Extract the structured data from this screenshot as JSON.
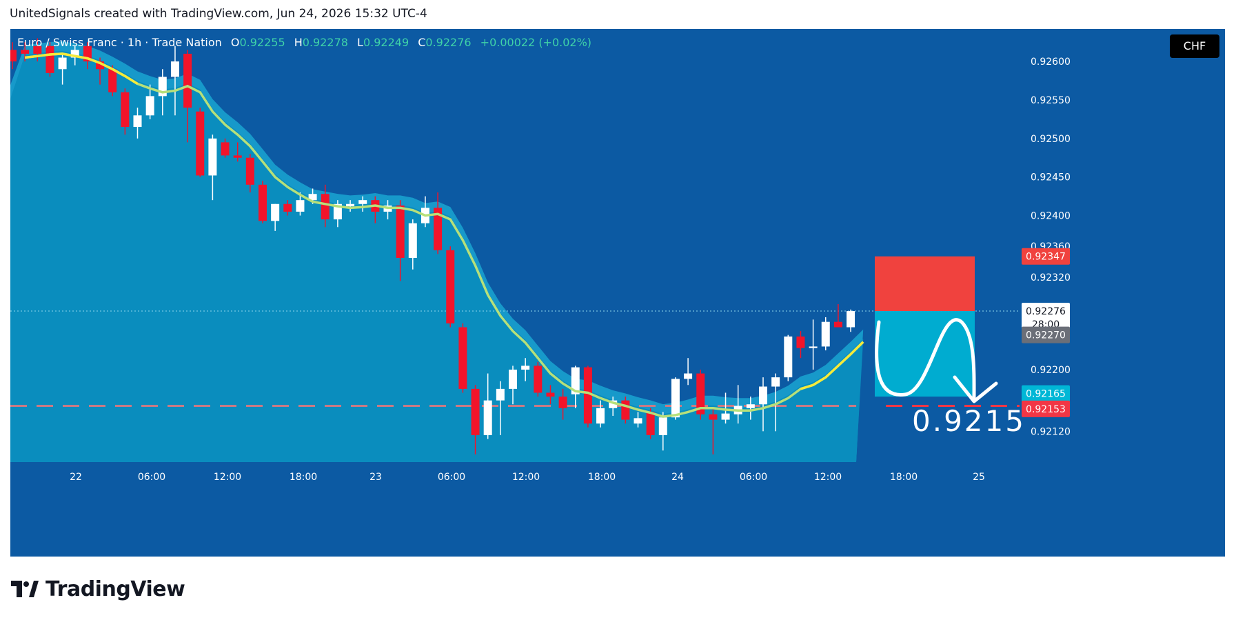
{
  "header": {
    "caption": "UnitedSignals created with TradingView.com, Jun 24, 2026 15:32 UTC-4"
  },
  "legend": {
    "symbol": "Euro / Swiss Franc · 1h · Trade Nation",
    "o_label": "O",
    "o_value": "0.92255",
    "h_label": "H",
    "h_value": "0.92278",
    "l_label": "L",
    "l_value": "0.92249",
    "c_label": "C",
    "c_value": "0.92276",
    "change": "+0.00022 (+0.02%)"
  },
  "currency_button": "CHF",
  "brand": {
    "name": "TradingView"
  },
  "colors": {
    "background": "#0c5aa3",
    "area_fill": "#0a8dbe",
    "area_band": "#1aa4d1",
    "bull": "#ffffff",
    "bear": "#f2142a",
    "ma_line": "#b6e07a",
    "ma_line_recent": "#f5ea3a",
    "stop_zone": "#f0423e",
    "target_zone": "#00acd0",
    "target_line": "#f23645",
    "axis_text": "#ffffff"
  },
  "chart_data": {
    "type": "candlestick",
    "symbol": "Euro / Swiss Franc",
    "timeframe": "1h",
    "ylim": [
      0.9208,
      0.92635
    ],
    "y_ticks": [
      "0.92600",
      "0.92550",
      "0.92500",
      "0.92450",
      "0.92400",
      "0.92360",
      "0.92320",
      "0.92200",
      "0.92120"
    ],
    "x_ticks": [
      "22",
      "06:00",
      "12:00",
      "18:00",
      "23",
      "06:00",
      "12:00",
      "18:00",
      "24",
      "06:00",
      "12:00",
      "18:00",
      "25"
    ],
    "candles": [
      {
        "o": 0.92615,
        "h": 0.92625,
        "l": 0.9259,
        "c": 0.926
      },
      {
        "o": 0.92615,
        "h": 0.92625,
        "l": 0.926,
        "c": 0.9261
      },
      {
        "o": 0.9262,
        "h": 0.9263,
        "l": 0.926,
        "c": 0.9261
      },
      {
        "o": 0.9262,
        "h": 0.92625,
        "l": 0.9258,
        "c": 0.92585
      },
      {
        "o": 0.9259,
        "h": 0.9261,
        "l": 0.9257,
        "c": 0.92605
      },
      {
        "o": 0.92605,
        "h": 0.9262,
        "l": 0.92595,
        "c": 0.92615
      },
      {
        "o": 0.9262,
        "h": 0.92625,
        "l": 0.9259,
        "c": 0.926
      },
      {
        "o": 0.926,
        "h": 0.92605,
        "l": 0.9257,
        "c": 0.9259
      },
      {
        "o": 0.9259,
        "h": 0.92595,
        "l": 0.92555,
        "c": 0.9256
      },
      {
        "o": 0.9256,
        "h": 0.92565,
        "l": 0.92505,
        "c": 0.92515
      },
      {
        "o": 0.92515,
        "h": 0.9254,
        "l": 0.925,
        "c": 0.9253
      },
      {
        "o": 0.9253,
        "h": 0.9257,
        "l": 0.92525,
        "c": 0.92555
      },
      {
        "o": 0.92555,
        "h": 0.9259,
        "l": 0.9253,
        "c": 0.9258
      },
      {
        "o": 0.9258,
        "h": 0.9262,
        "l": 0.9253,
        "c": 0.926
      },
      {
        "o": 0.9261,
        "h": 0.92615,
        "l": 0.92495,
        "c": 0.9254
      },
      {
        "o": 0.92535,
        "h": 0.9254,
        "l": 0.9245,
        "c": 0.92452
      },
      {
        "o": 0.92452,
        "h": 0.92505,
        "l": 0.9242,
        "c": 0.925
      },
      {
        "o": 0.92495,
        "h": 0.925,
        "l": 0.92475,
        "c": 0.92478
      },
      {
        "o": 0.92478,
        "h": 0.92495,
        "l": 0.9247,
        "c": 0.92475
      },
      {
        "o": 0.92475,
        "h": 0.9248,
        "l": 0.9243,
        "c": 0.9244
      },
      {
        "o": 0.9244,
        "h": 0.92445,
        "l": 0.9239,
        "c": 0.92393
      },
      {
        "o": 0.92393,
        "h": 0.92415,
        "l": 0.9238,
        "c": 0.92415
      },
      {
        "o": 0.92415,
        "h": 0.9242,
        "l": 0.924,
        "c": 0.92405
      },
      {
        "o": 0.92405,
        "h": 0.9243,
        "l": 0.924,
        "c": 0.9242
      },
      {
        "o": 0.9242,
        "h": 0.92435,
        "l": 0.92415,
        "c": 0.92428
      },
      {
        "o": 0.92428,
        "h": 0.9244,
        "l": 0.92385,
        "c": 0.92395
      },
      {
        "o": 0.92395,
        "h": 0.9242,
        "l": 0.92385,
        "c": 0.92415
      },
      {
        "o": 0.92412,
        "h": 0.9242,
        "l": 0.92405,
        "c": 0.92415
      },
      {
        "o": 0.92415,
        "h": 0.92425,
        "l": 0.92405,
        "c": 0.9242
      },
      {
        "o": 0.9242,
        "h": 0.92425,
        "l": 0.9239,
        "c": 0.92405
      },
      {
        "o": 0.92405,
        "h": 0.9242,
        "l": 0.92395,
        "c": 0.92413
      },
      {
        "o": 0.92413,
        "h": 0.9242,
        "l": 0.92315,
        "c": 0.92345
      },
      {
        "o": 0.92345,
        "h": 0.92395,
        "l": 0.9233,
        "c": 0.9239
      },
      {
        "o": 0.9239,
        "h": 0.92425,
        "l": 0.92385,
        "c": 0.9241
      },
      {
        "o": 0.9241,
        "h": 0.9243,
        "l": 0.9235,
        "c": 0.92355
      },
      {
        "o": 0.92355,
        "h": 0.9236,
        "l": 0.92255,
        "c": 0.9226
      },
      {
        "o": 0.92255,
        "h": 0.9226,
        "l": 0.9217,
        "c": 0.92175
      },
      {
        "o": 0.92175,
        "h": 0.9218,
        "l": 0.9209,
        "c": 0.92115
      },
      {
        "o": 0.92115,
        "h": 0.92195,
        "l": 0.9211,
        "c": 0.9216
      },
      {
        "o": 0.9216,
        "h": 0.92185,
        "l": 0.92115,
        "c": 0.92175
      },
      {
        "o": 0.92175,
        "h": 0.92205,
        "l": 0.92155,
        "c": 0.922
      },
      {
        "o": 0.922,
        "h": 0.92215,
        "l": 0.92185,
        "c": 0.92205
      },
      {
        "o": 0.92205,
        "h": 0.9221,
        "l": 0.92165,
        "c": 0.9217
      },
      {
        "o": 0.9217,
        "h": 0.9218,
        "l": 0.92155,
        "c": 0.92165
      },
      {
        "o": 0.92165,
        "h": 0.92175,
        "l": 0.92135,
        "c": 0.9215
      },
      {
        "o": 0.92168,
        "h": 0.92205,
        "l": 0.9215,
        "c": 0.92203
      },
      {
        "o": 0.92203,
        "h": 0.92205,
        "l": 0.92125,
        "c": 0.9213
      },
      {
        "o": 0.9213,
        "h": 0.9216,
        "l": 0.92125,
        "c": 0.9215
      },
      {
        "o": 0.9215,
        "h": 0.92165,
        "l": 0.9214,
        "c": 0.9216
      },
      {
        "o": 0.9216,
        "h": 0.92165,
        "l": 0.9213,
        "c": 0.92135
      },
      {
        "o": 0.9213,
        "h": 0.92145,
        "l": 0.92125,
        "c": 0.92137
      },
      {
        "o": 0.92145,
        "h": 0.9215,
        "l": 0.9211,
        "c": 0.92115
      },
      {
        "o": 0.92115,
        "h": 0.92145,
        "l": 0.92095,
        "c": 0.92138
      },
      {
        "o": 0.92138,
        "h": 0.9219,
        "l": 0.92135,
        "c": 0.92188
      },
      {
        "o": 0.92188,
        "h": 0.92215,
        "l": 0.9218,
        "c": 0.92195
      },
      {
        "o": 0.92195,
        "h": 0.922,
        "l": 0.92135,
        "c": 0.92142
      },
      {
        "o": 0.92142,
        "h": 0.9215,
        "l": 0.9209,
        "c": 0.92135
      },
      {
        "o": 0.92135,
        "h": 0.9217,
        "l": 0.9213,
        "c": 0.92143
      },
      {
        "o": 0.92142,
        "h": 0.9218,
        "l": 0.9213,
        "c": 0.92153
      },
      {
        "o": 0.9215,
        "h": 0.92165,
        "l": 0.92135,
        "c": 0.92155
      },
      {
        "o": 0.92155,
        "h": 0.9219,
        "l": 0.9212,
        "c": 0.92178
      },
      {
        "o": 0.92178,
        "h": 0.92195,
        "l": 0.9212,
        "c": 0.9219
      },
      {
        "o": 0.9219,
        "h": 0.92245,
        "l": 0.92185,
        "c": 0.92243
      },
      {
        "o": 0.92243,
        "h": 0.9225,
        "l": 0.92215,
        "c": 0.92228
      },
      {
        "o": 0.92228,
        "h": 0.92265,
        "l": 0.922,
        "c": 0.9223
      },
      {
        "o": 0.9223,
        "h": 0.92268,
        "l": 0.92225,
        "c": 0.92262
      },
      {
        "o": 0.92262,
        "h": 0.92285,
        "l": 0.92255,
        "c": 0.92255
      },
      {
        "o": 0.92255,
        "h": 0.92278,
        "l": 0.92249,
        "c": 0.92276
      }
    ],
    "moving_average": [
      0.92605,
      0.92607,
      0.92609,
      0.9261,
      0.92607,
      0.92604,
      0.92598,
      0.9259,
      0.92581,
      0.92571,
      0.92565,
      0.9256,
      0.92562,
      0.92568,
      0.9256,
      0.92535,
      0.92518,
      0.92505,
      0.9249,
      0.9247,
      0.9245,
      0.92437,
      0.92427,
      0.92418,
      0.92415,
      0.92412,
      0.9241,
      0.92411,
      0.92413,
      0.9241,
      0.9241,
      0.92407,
      0.924,
      0.92402,
      0.92395,
      0.92368,
      0.92335,
      0.92297,
      0.9227,
      0.9225,
      0.92235,
      0.92215,
      0.92195,
      0.92182,
      0.92172,
      0.9217,
      0.92163,
      0.92157,
      0.92153,
      0.92148,
      0.92144,
      0.92139,
      0.92141,
      0.92145,
      0.9215,
      0.9215,
      0.92148,
      0.92147,
      0.92147,
      0.9215,
      0.92155,
      0.92163,
      0.92175,
      0.9218,
      0.9219,
      0.92205,
      0.9222,
      0.92236
    ],
    "price_labels": {
      "stop": "0.92347",
      "last": "0.92276",
      "countdown": "28:00",
      "prev_close": "0.92270",
      "entry": "0.92165",
      "target": "0.92153"
    },
    "stop_price": 0.92347,
    "last_price": 0.92276,
    "entry_price": 0.92165,
    "target_price": 0.92153,
    "prev_close_price": 0.9227,
    "target_annotation": "0.9215"
  }
}
